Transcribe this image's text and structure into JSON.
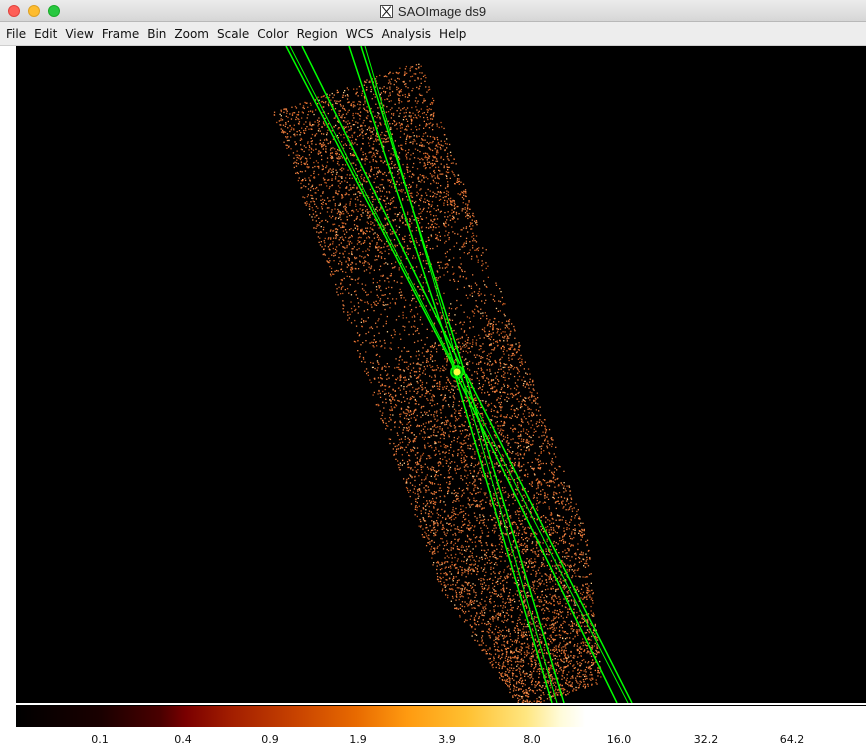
{
  "window": {
    "title": "SAOImage ds9",
    "title_icon": "x11-icon"
  },
  "menu": {
    "items": [
      "File",
      "Edit",
      "View",
      "Frame",
      "Bin",
      "Zoom",
      "Scale",
      "Color",
      "Region",
      "WCS",
      "Analysis",
      "Help"
    ]
  },
  "image": {
    "colormap": "heat",
    "background_color": "#000000",
    "event_color": "#f08040",
    "region_color": "#00ff00",
    "source_color": "#ffff40"
  },
  "colorbar": {
    "ticks": [
      "0.1",
      "0.4",
      "0.9",
      "1.9",
      "3.9",
      "8.0",
      "16.0",
      "32.2",
      "64.2"
    ]
  }
}
